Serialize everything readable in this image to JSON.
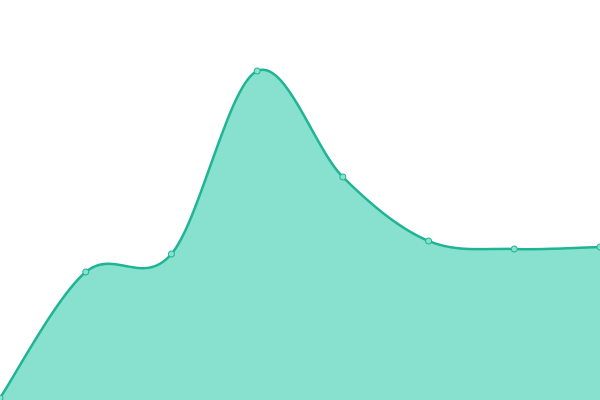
{
  "chart_data": {
    "type": "area",
    "categories": [
      null,
      null,
      null,
      null,
      null,
      null,
      null,
      null
    ],
    "values": [
      2,
      128,
      146,
      329,
      223,
      159,
      151,
      153
    ],
    "color": "#88e0cf",
    "line_color": "#1fb493",
    "ylim": [
      0,
      400
    ]
  }
}
